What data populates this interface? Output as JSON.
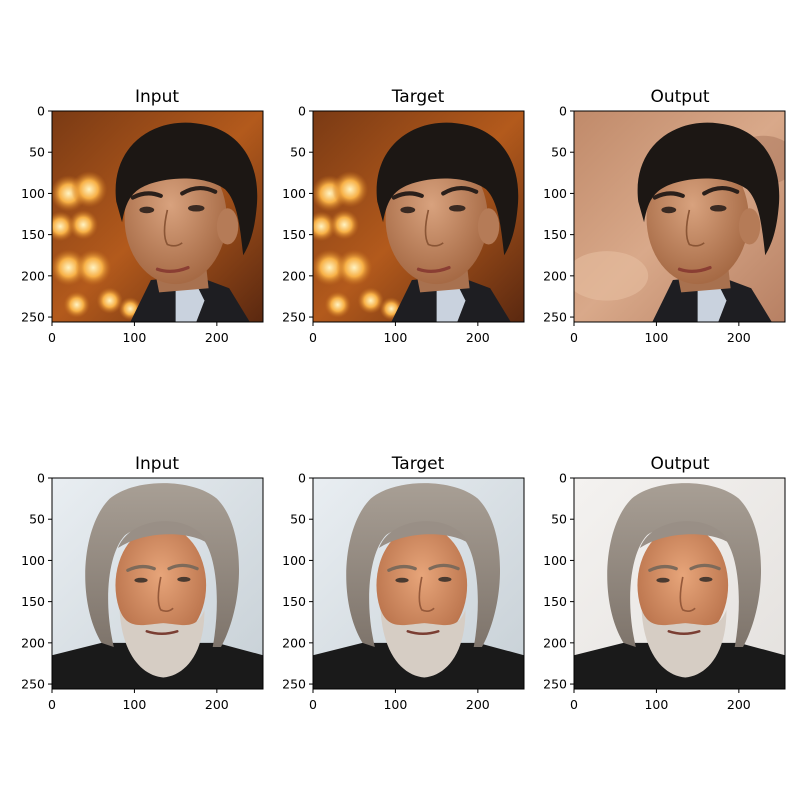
{
  "figure": {
    "rows": [
      {
        "panels": [
          {
            "title": "Input",
            "subject": "young-man-dark-hair",
            "background": "orange-bokeh-lights"
          },
          {
            "title": "Target",
            "subject": "young-man-dark-hair",
            "background": "orange-bokeh-lights"
          },
          {
            "title": "Output",
            "subject": "young-man-dark-hair",
            "background": "blurred-warm-tan"
          }
        ]
      },
      {
        "panels": [
          {
            "title": "Input",
            "subject": "older-man-gray-beard",
            "background": "pale-blue-gray"
          },
          {
            "title": "Target",
            "subject": "older-man-gray-beard",
            "background": "pale-blue-gray"
          },
          {
            "title": "Output",
            "subject": "older-man-gray-beard",
            "background": "soft-off-white"
          }
        ]
      }
    ],
    "x_ticks": [
      "0",
      "100",
      "200"
    ],
    "y_ticks": [
      "0",
      "50",
      "100",
      "150",
      "200",
      "250"
    ],
    "x_tick_values": [
      0,
      100,
      200
    ],
    "y_tick_values": [
      0,
      50,
      100,
      150,
      200,
      250
    ],
    "axis_range": [
      0,
      256
    ]
  }
}
